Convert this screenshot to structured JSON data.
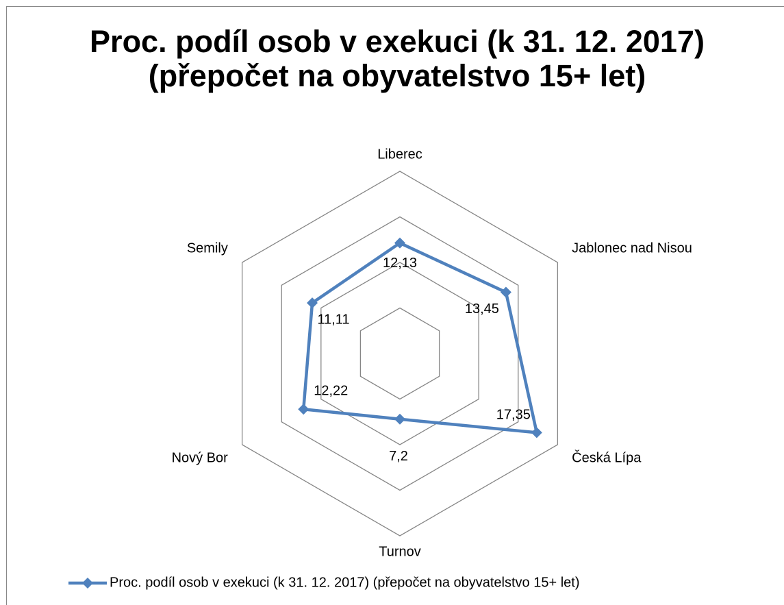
{
  "chart_data": {
    "type": "radar",
    "title": "Proc. podíl osob v exekuci (k 31. 12. 2017) (přepočet na obyvatelstvo 15+ let)",
    "categories": [
      "Liberec",
      "Jablonec nad Nisou",
      "Česká Lípa",
      "Turnov",
      "Nový Bor",
      "Semily"
    ],
    "series": [
      {
        "name": "Proc. podíl osob v exekuci (k 31. 12. 2017) (přepočet na obyvatelstvo 15+ let)",
        "color": "#4f81bd",
        "values": [
          12.13,
          13.45,
          17.35,
          7.2,
          12.22,
          11.11
        ],
        "value_labels": [
          "12,13",
          "13,45",
          "17,35",
          "7,2",
          "12,22",
          "11,11"
        ]
      }
    ],
    "rlim": [
      0,
      20
    ],
    "rticks": [
      5,
      10,
      15,
      20
    ],
    "grid": true,
    "legend": "bottom"
  }
}
